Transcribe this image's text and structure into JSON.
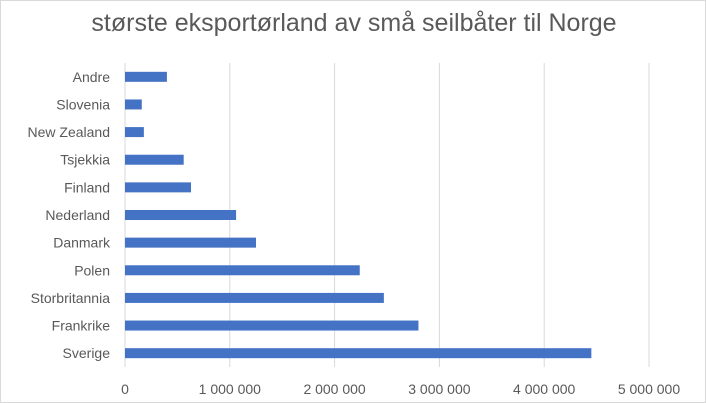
{
  "chart_data": {
    "type": "bar",
    "orientation": "horizontal",
    "title": "største eksportørland av små seilbåter til Norge",
    "categories": [
      "Andre",
      "Slovenia",
      "New Zealand",
      "Tsjekkia",
      "Finland",
      "Nederland",
      "Danmark",
      "Polen",
      "Storbritannia",
      "Frankrike",
      "Sverige"
    ],
    "values": [
      400000,
      160000,
      180000,
      560000,
      630000,
      1060000,
      1250000,
      2240000,
      2470000,
      2800000,
      4450000
    ],
    "xlim": [
      0,
      5000000
    ],
    "x_ticks": [
      0,
      1000000,
      2000000,
      3000000,
      4000000,
      5000000
    ],
    "x_tick_labels": [
      "0",
      "1 000 000",
      "2 000 000",
      "3 000 000",
      "4 000 000",
      "5 000 000"
    ],
    "grid": "vertical",
    "legend": "none",
    "bar_color": "#4472c4",
    "grid_color": "#d9d9d9"
  }
}
